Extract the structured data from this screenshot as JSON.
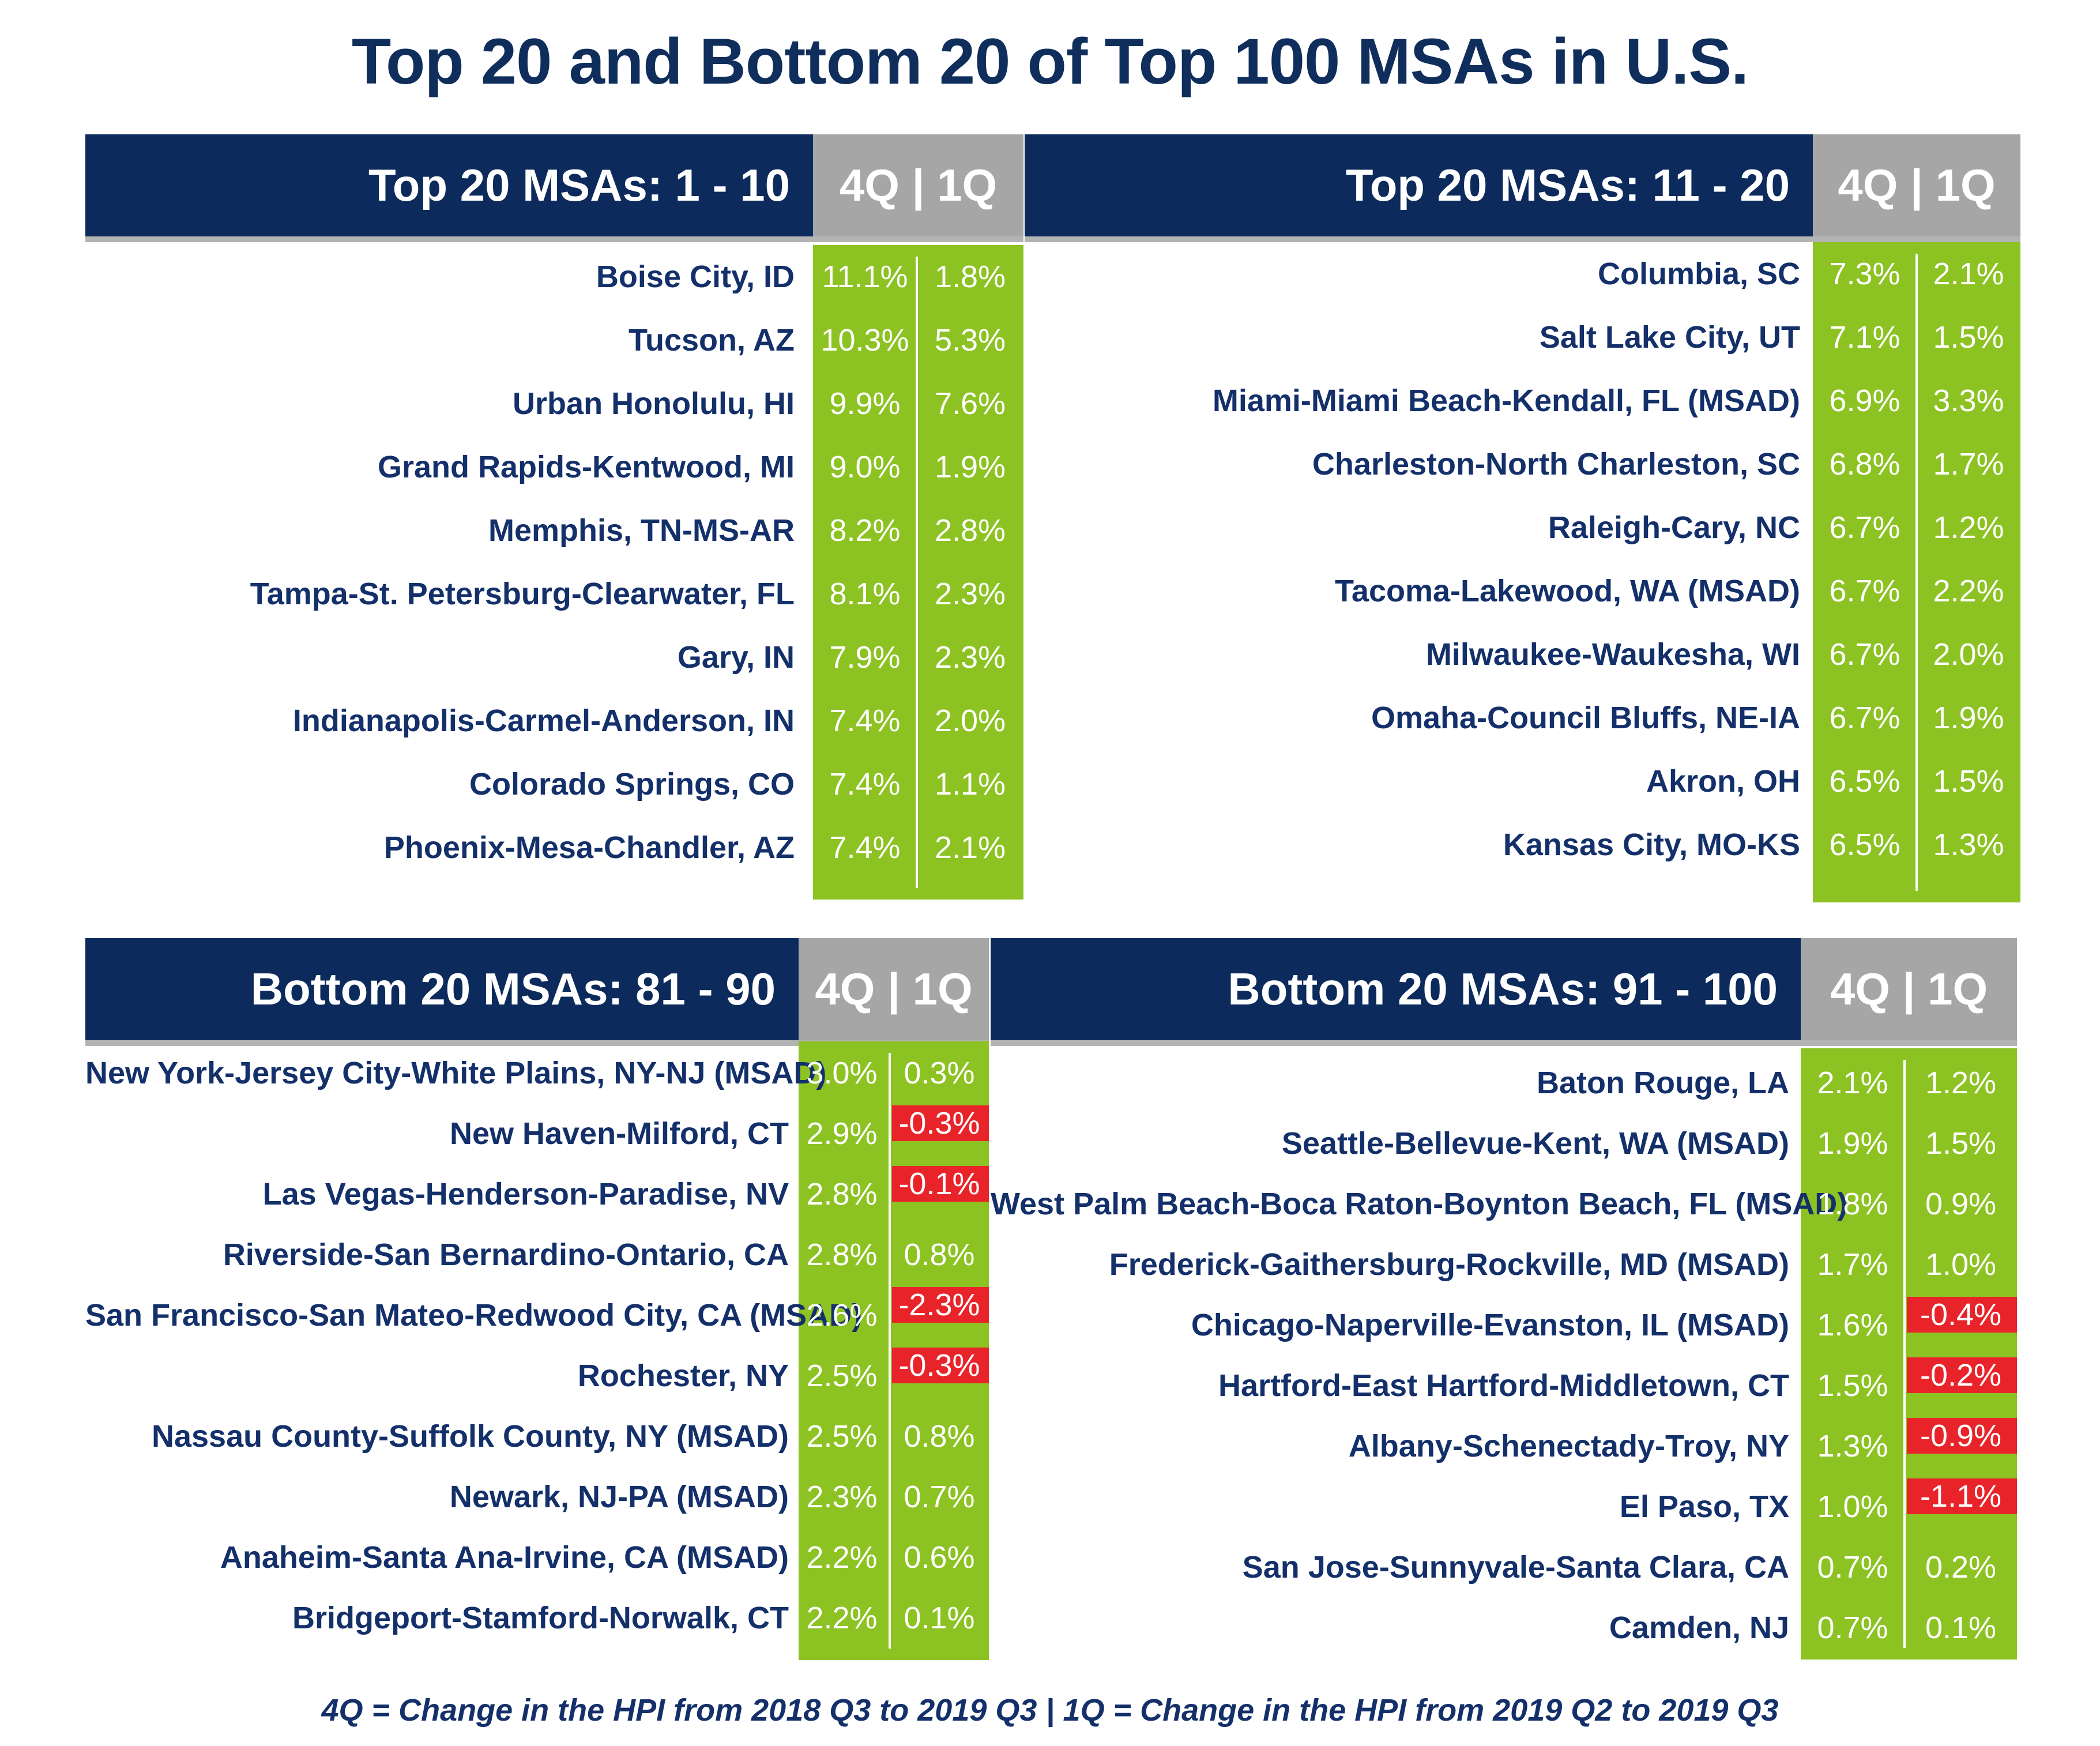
{
  "chart_data": {
    "type": "table",
    "title": "Top 20 and Bottom 20 of Top 100 MSAs in U.S.",
    "footnote": "4Q = Change in the HPI from 2018 Q3 to 2019 Q3   |   1Q = Change in the HPI from 2019 Q2 to 2019 Q3",
    "column_header": "4Q | 1Q",
    "colors": {
      "header": "#0c2b5c",
      "header_cols": "#a6a6a6",
      "positive_cell": "#8dc223",
      "negative_cell": "#e8242a",
      "text": "#14306a"
    },
    "panels": [
      {
        "heading": "Top 20 MSAs: 1 - 10",
        "rows": [
          {
            "name": "Boise City, ID",
            "q4": "11.1%",
            "q1": "1.8%"
          },
          {
            "name": "Tucson, AZ",
            "q4": "10.3%",
            "q1": "5.3%"
          },
          {
            "name": "Urban Honolulu, HI",
            "q4": "9.9%",
            "q1": "7.6%"
          },
          {
            "name": "Grand Rapids-Kentwood, MI",
            "q4": "9.0%",
            "q1": "1.9%"
          },
          {
            "name": "Memphis, TN-MS-AR",
            "q4": "8.2%",
            "q1": "2.8%"
          },
          {
            "name": "Tampa-St. Petersburg-Clearwater, FL",
            "q4": "8.1%",
            "q1": "2.3%"
          },
          {
            "name": "Gary, IN",
            "q4": "7.9%",
            "q1": "2.3%"
          },
          {
            "name": "Indianapolis-Carmel-Anderson, IN",
            "q4": "7.4%",
            "q1": "2.0%"
          },
          {
            "name": "Colorado Springs, CO",
            "q4": "7.4%",
            "q1": "1.1%"
          },
          {
            "name": "Phoenix-Mesa-Chandler, AZ",
            "q4": "7.4%",
            "q1": "2.1%"
          }
        ]
      },
      {
        "heading": "Top 20 MSAs: 11 - 20",
        "rows": [
          {
            "name": "Columbia, SC",
            "q4": "7.3%",
            "q1": "2.1%"
          },
          {
            "name": "Salt Lake City, UT",
            "q4": "7.1%",
            "q1": "1.5%"
          },
          {
            "name": "Miami-Miami Beach-Kendall, FL (MSAD)",
            "q4": "6.9%",
            "q1": "3.3%"
          },
          {
            "name": "Charleston-North Charleston, SC",
            "q4": "6.8%",
            "q1": "1.7%"
          },
          {
            "name": "Raleigh-Cary, NC",
            "q4": "6.7%",
            "q1": "1.2%"
          },
          {
            "name": "Tacoma-Lakewood, WA (MSAD)",
            "q4": "6.7%",
            "q1": "2.2%"
          },
          {
            "name": "Milwaukee-Waukesha, WI",
            "q4": "6.7%",
            "q1": "2.0%"
          },
          {
            "name": "Omaha-Council Bluffs, NE-IA",
            "q4": "6.7%",
            "q1": "1.9%"
          },
          {
            "name": "Akron, OH",
            "q4": "6.5%",
            "q1": "1.5%"
          },
          {
            "name": "Kansas City, MO-KS",
            "q4": "6.5%",
            "q1": "1.3%"
          }
        ]
      },
      {
        "heading": "Bottom 20 MSAs: 81 - 90",
        "rows": [
          {
            "name": "New York-Jersey City-White Plains, NY-NJ (MSAD)",
            "q4": "3.0%",
            "q1": "0.3%"
          },
          {
            "name": "New Haven-Milford, CT",
            "q4": "2.9%",
            "q1": "-0.3%"
          },
          {
            "name": "Las Vegas-Henderson-Paradise, NV",
            "q4": "2.8%",
            "q1": "-0.1%"
          },
          {
            "name": "Riverside-San Bernardino-Ontario, CA",
            "q4": "2.8%",
            "q1": "0.8%"
          },
          {
            "name": "San Francisco-San Mateo-Redwood City, CA (MSAD)",
            "q4": "2.6%",
            "q1": "-2.3%"
          },
          {
            "name": "Rochester, NY",
            "q4": "2.5%",
            "q1": "-0.3%"
          },
          {
            "name": "Nassau County-Suffolk County, NY (MSAD)",
            "q4": "2.5%",
            "q1": "0.8%"
          },
          {
            "name": "Newark, NJ-PA (MSAD)",
            "q4": "2.3%",
            "q1": "0.7%"
          },
          {
            "name": "Anaheim-Santa Ana-Irvine, CA (MSAD)",
            "q4": "2.2%",
            "q1": "0.6%"
          },
          {
            "name": "Bridgeport-Stamford-Norwalk, CT",
            "q4": "2.2%",
            "q1": "0.1%"
          }
        ]
      },
      {
        "heading": "Bottom 20 MSAs: 91 - 100",
        "rows": [
          {
            "name": "Baton Rouge, LA",
            "q4": "2.1%",
            "q1": "1.2%"
          },
          {
            "name": "Seattle-Bellevue-Kent, WA (MSAD)",
            "q4": "1.9%",
            "q1": "1.5%"
          },
          {
            "name": "West Palm Beach-Boca Raton-Boynton Beach, FL (MSAD)",
            "q4": "1.8%",
            "q1": "0.9%"
          },
          {
            "name": "Frederick-Gaithersburg-Rockville, MD (MSAD)",
            "q4": "1.7%",
            "q1": "1.0%"
          },
          {
            "name": "Chicago-Naperville-Evanston, IL (MSAD)",
            "q4": "1.6%",
            "q1": "-0.4%"
          },
          {
            "name": "Hartford-East Hartford-Middletown, CT",
            "q4": "1.5%",
            "q1": "-0.2%"
          },
          {
            "name": "Albany-Schenectady-Troy, NY",
            "q4": "1.3%",
            "q1": "-0.9%"
          },
          {
            "name": "El Paso, TX",
            "q4": "1.0%",
            "q1": "-1.1%"
          },
          {
            "name": "San Jose-Sunnyvale-Santa Clara, CA",
            "q4": "0.7%",
            "q1": "0.2%"
          },
          {
            "name": "Camden, NJ",
            "q4": "0.7%",
            "q1": "0.1%"
          }
        ]
      }
    ]
  }
}
